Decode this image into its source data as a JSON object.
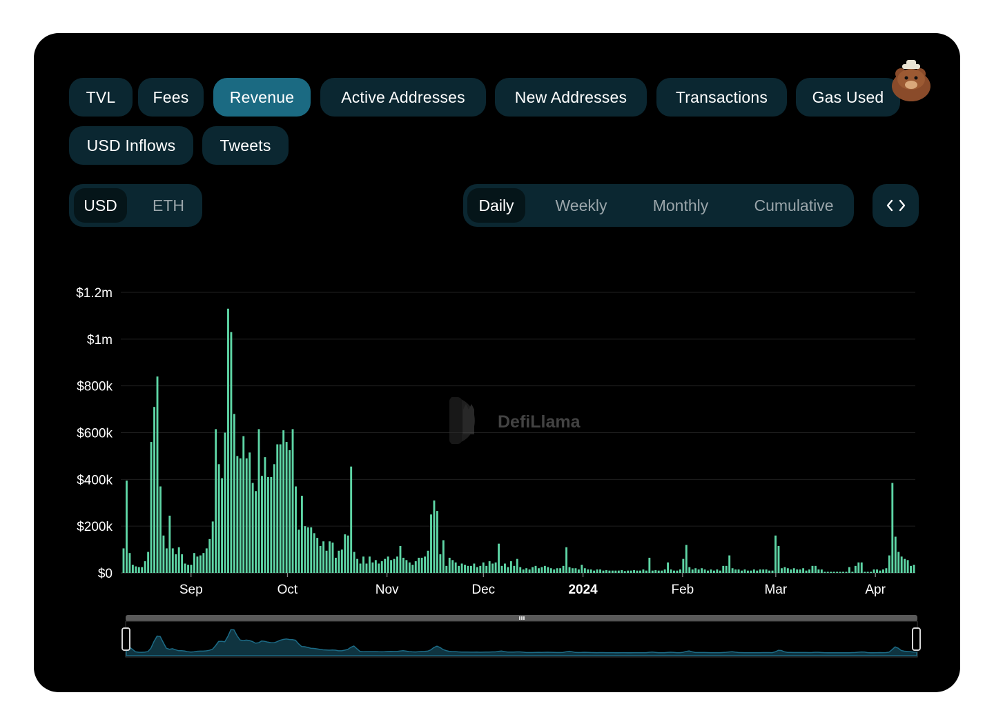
{
  "metric_tabs": [
    {
      "label": "TVL",
      "active": false
    },
    {
      "label": "Fees",
      "active": false
    },
    {
      "label": "Revenue",
      "active": true
    },
    {
      "label": "Active Addresses",
      "active": false
    },
    {
      "label": "New Addresses",
      "active": false
    },
    {
      "label": "Transactions",
      "active": false
    },
    {
      "label": "Gas Used",
      "active": false
    },
    {
      "label": "USD Inflows",
      "active": false
    },
    {
      "label": "Tweets",
      "active": false
    }
  ],
  "denomination": {
    "options": [
      "USD",
      "ETH"
    ],
    "selected": "USD"
  },
  "period": {
    "options": [
      "Daily",
      "Weekly",
      "Monthly",
      "Cumulative"
    ],
    "selected": "Daily"
  },
  "embed_icon": "code-icon",
  "mascot_icon": "bear-mascot-icon",
  "watermark": {
    "text": "DefiLlama",
    "icon": "llama-logo-icon"
  },
  "colors": {
    "bar": "#5ed6a6",
    "accent_tab": "#1b6a82",
    "tab_bg": "#0b2731",
    "brush": "#1c6b86"
  },
  "chart_data": {
    "type": "bar",
    "ylim": [
      0,
      1200000
    ],
    "y_ticks": [
      "$0",
      "$200k",
      "$400k",
      "$600k",
      "$800k",
      "$1m",
      "$1.2m"
    ],
    "x_ticks": [
      "Sep",
      "Oct",
      "Nov",
      "Dec",
      "2024",
      "Feb",
      "Mar",
      "Apr"
    ],
    "x_range": [
      "2023-08-11",
      "2024-04-13"
    ],
    "values": [
      105000,
      395000,
      85000,
      35000,
      28000,
      25000,
      25000,
      50000,
      90000,
      560000,
      710000,
      840000,
      370000,
      160000,
      105000,
      245000,
      105000,
      80000,
      110000,
      80000,
      40000,
      35000,
      35000,
      85000,
      70000,
      75000,
      85000,
      105000,
      145000,
      220000,
      615000,
      465000,
      405000,
      600000,
      1130000,
      1030000,
      680000,
      500000,
      490000,
      585000,
      490000,
      515000,
      385000,
      350000,
      615000,
      415000,
      495000,
      410000,
      410000,
      465000,
      550000,
      550000,
      610000,
      560000,
      525000,
      615000,
      370000,
      185000,
      330000,
      200000,
      195000,
      195000,
      170000,
      150000,
      115000,
      135000,
      95000,
      135000,
      130000,
      65000,
      95000,
      100000,
      165000,
      160000,
      455000,
      90000,
      60000,
      40000,
      70000,
      40000,
      70000,
      45000,
      55000,
      40000,
      50000,
      60000,
      70000,
      55000,
      60000,
      70000,
      115000,
      65000,
      55000,
      45000,
      35000,
      50000,
      65000,
      65000,
      70000,
      95000,
      250000,
      310000,
      265000,
      80000,
      140000,
      30000,
      65000,
      55000,
      45000,
      30000,
      40000,
      35000,
      30000,
      30000,
      40000,
      25000,
      30000,
      45000,
      30000,
      50000,
      40000,
      45000,
      125000,
      30000,
      40000,
      25000,
      50000,
      30000,
      60000,
      25000,
      15000,
      20000,
      15000,
      25000,
      30000,
      20000,
      25000,
      30000,
      25000,
      20000,
      15000,
      20000,
      20000,
      30000,
      110000,
      25000,
      20000,
      20000,
      15000,
      35000,
      20000,
      15000,
      15000,
      10000,
      15000,
      15000,
      10000,
      12000,
      10000,
      10000,
      10000,
      10000,
      12000,
      8000,
      10000,
      10000,
      12000,
      10000,
      10000,
      15000,
      10000,
      65000,
      10000,
      12000,
      10000,
      10000,
      15000,
      45000,
      15000,
      10000,
      10000,
      15000,
      60000,
      120000,
      25000,
      15000,
      20000,
      15000,
      20000,
      15000,
      10000,
      15000,
      10000,
      15000,
      10000,
      30000,
      30000,
      75000,
      20000,
      15000,
      15000,
      10000,
      15000,
      10000,
      10000,
      15000,
      10000,
      15000,
      15000,
      15000,
      10000,
      10000,
      160000,
      115000,
      20000,
      25000,
      20000,
      15000,
      20000,
      15000,
      15000,
      20000,
      10000,
      15000,
      30000,
      30000,
      15000,
      15000,
      5000,
      5000,
      5000,
      5000,
      5000,
      5000,
      5000,
      5000,
      25000,
      5000,
      30000,
      45000,
      45000,
      5000,
      5000,
      5000,
      15000,
      15000,
      10000,
      15000,
      20000,
      75000,
      385000,
      155000,
      90000,
      70000,
      60000,
      55000,
      30000,
      35000
    ]
  }
}
